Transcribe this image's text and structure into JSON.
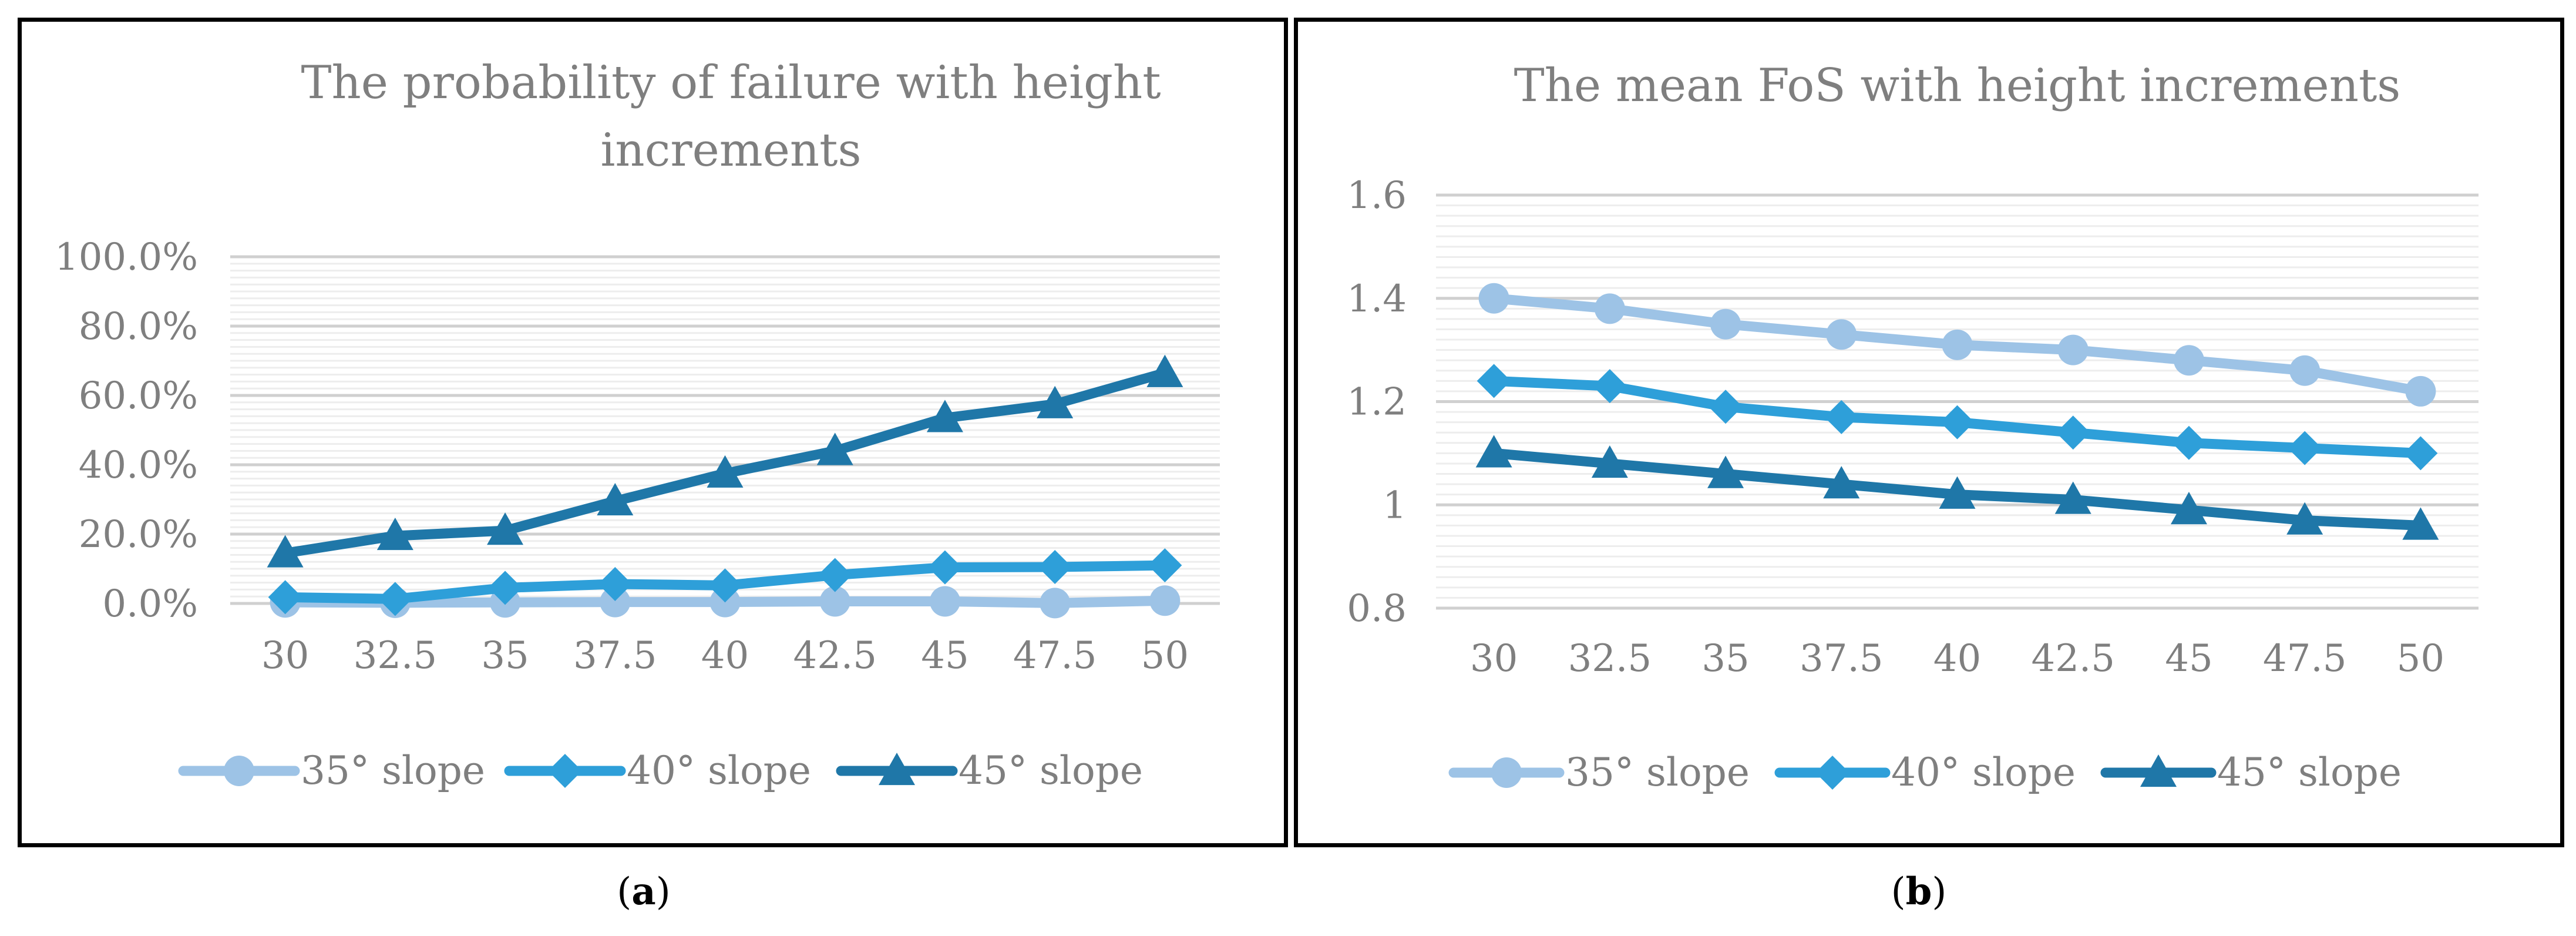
{
  "colors": {
    "text": "#7f7f7f",
    "grid_major": "#d0d0d0",
    "grid_minor": "#ededed",
    "series": [
      "#9dc3e6",
      "#2e9fd9",
      "#1f77a8"
    ]
  },
  "captions": {
    "a": "a",
    "b": "b"
  },
  "chart_data": [
    {
      "type": "line",
      "title": "The probability of failure with height increments",
      "title_lines": [
        "The probability of failure with height",
        "increments"
      ],
      "categories": [
        "30",
        "32.5",
        "35",
        "37.5",
        "40",
        "42.5",
        "45",
        "47.5",
        "50"
      ],
      "ylim": [
        0,
        100
      ],
      "yticks": [
        0,
        20,
        40,
        60,
        80,
        100
      ],
      "ytick_labels": [
        "0.0%",
        "20.0%",
        "40.0%",
        "60.0%",
        "80.0%",
        "100.0%"
      ],
      "minor_gridlines": true,
      "legend_position": "bottom",
      "series": [
        {
          "name": "35° slope",
          "marker": "circle",
          "values": [
            0.3,
            0.2,
            0.3,
            0.4,
            0.4,
            0.6,
            0.6,
            0.1,
            0.8
          ]
        },
        {
          "name": "40° slope",
          "marker": "diamond",
          "values": [
            1.8,
            1.3,
            4.5,
            5.6,
            5.2,
            8.2,
            10.4,
            10.5,
            11.0
          ]
        },
        {
          "name": "45° slope",
          "marker": "triangle",
          "values": [
            14.5,
            19.5,
            21.0,
            29.5,
            37.5,
            44.0,
            53.5,
            57.5,
            66.5
          ]
        }
      ]
    },
    {
      "type": "line",
      "title": "The mean FoS with height increments",
      "title_lines": [
        "The mean FoS with height increments"
      ],
      "categories": [
        "30",
        "32.5",
        "35",
        "37.5",
        "40",
        "42.5",
        "45",
        "47.5",
        "50"
      ],
      "ylim": [
        0.8,
        1.6
      ],
      "yticks": [
        0.8,
        1.0,
        1.2,
        1.4,
        1.6
      ],
      "ytick_labels": [
        "0.8",
        "1",
        "1.2",
        "1.4",
        "1.6"
      ],
      "minor_gridlines": true,
      "legend_position": "bottom",
      "series": [
        {
          "name": "35° slope",
          "marker": "circle",
          "values": [
            1.4,
            1.38,
            1.35,
            1.33,
            1.31,
            1.3,
            1.28,
            1.26,
            1.22
          ]
        },
        {
          "name": "40° slope",
          "marker": "diamond",
          "values": [
            1.24,
            1.23,
            1.19,
            1.17,
            1.16,
            1.14,
            1.12,
            1.11,
            1.1
          ]
        },
        {
          "name": "45° slope",
          "marker": "triangle",
          "values": [
            1.1,
            1.08,
            1.06,
            1.04,
            1.02,
            1.01,
            0.99,
            0.97,
            0.96
          ]
        }
      ]
    }
  ]
}
